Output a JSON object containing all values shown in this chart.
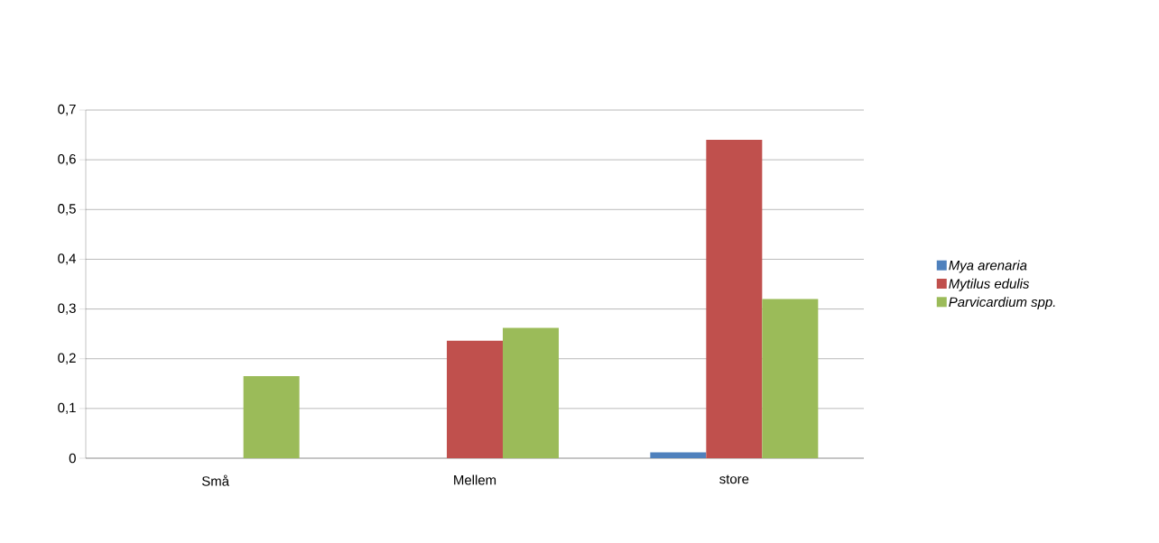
{
  "chart_data": {
    "type": "bar",
    "categories": [
      "Små",
      "Mellem",
      "store"
    ],
    "series": [
      {
        "name": "*Mya arenaria*",
        "color": "#4f81bd",
        "values": [
          0,
          0,
          0.012
        ]
      },
      {
        "name": "*Mytilus edulis*",
        "color": "#c0504d",
        "values": [
          0,
          0.236,
          0.64
        ]
      },
      {
        "name": "*Parvicardium spp.*",
        "color": "#9bbb59",
        "values": [
          0.165,
          0.262,
          0.32
        ]
      }
    ],
    "ylim": [
      0,
      0.7
    ],
    "yticks": [
      {
        "value": 0,
        "label": "0"
      },
      {
        "value": 0.1,
        "label": "0,1"
      },
      {
        "value": 0.2,
        "label": "0,2"
      },
      {
        "value": 0.3,
        "label": "0,3"
      },
      {
        "value": 0.4,
        "label": "0,4"
      },
      {
        "value": 0.5,
        "label": "0,5"
      },
      {
        "value": 0.6,
        "label": "0,6"
      },
      {
        "value": 0.7,
        "label": "0,7"
      }
    ],
    "grid": "y",
    "legend": "right"
  }
}
